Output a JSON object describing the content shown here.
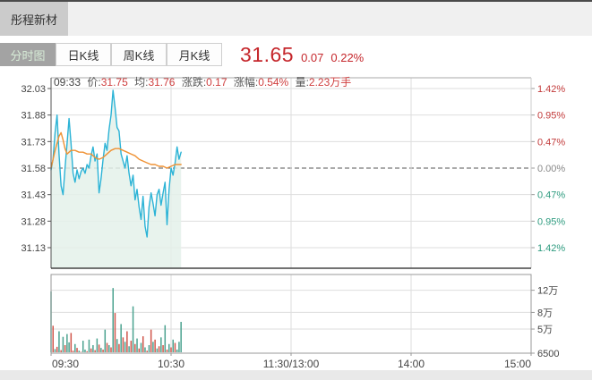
{
  "header": {
    "stock_name": "彤程新材"
  },
  "tabs": [
    {
      "label": "分时图",
      "selected": true
    },
    {
      "label": "日K线",
      "selected": false
    },
    {
      "label": "周K线",
      "selected": false
    },
    {
      "label": "月K线",
      "selected": false
    }
  ],
  "quote": {
    "price": "31.65",
    "change": "0.07",
    "change_pct": "0.22%"
  },
  "info_line": {
    "time": "09:33",
    "price_label": "价:",
    "price": "31.75",
    "avg_label": "均:",
    "avg": "31.76",
    "change_label": "涨跌:",
    "change": "0.17",
    "pct_label": "涨幅:",
    "pct": "0.54%",
    "vol_label": "量:",
    "vol": "2.23万手"
  },
  "colors": {
    "price_line": "#2bb3d6",
    "avg_line": "#ef9234",
    "fill": "#e4f1ea",
    "up": "#d0554a",
    "down": "#4aa28f",
    "axis_red": "#c23b3b",
    "axis_green": "#2e9b7f",
    "axis_gray": "#888888",
    "label_dark": "#444444",
    "grid": "#dedede"
  },
  "chart_data": {
    "type": "line",
    "title": "分时图 (intraday price/volume)",
    "x": {
      "labels": [
        "09:30",
        "10:30",
        "11:30/13:00",
        "14:00",
        "15:00"
      ],
      "minutes_total": 240,
      "gridline_minutes": [
        60,
        120,
        180
      ]
    },
    "price_pane": {
      "base_price": 31.58,
      "left_ticks": [
        32.03,
        31.88,
        31.73,
        31.58,
        31.43,
        31.28,
        31.13
      ],
      "right_ticks": [
        "1.42%",
        "0.95%",
        "0.47%",
        "0.00%",
        "0.47%",
        "0.95%",
        "1.42%"
      ],
      "series": [
        {
          "name": "price",
          "color_key": "price_line",
          "points": [
            [
              0,
              31.57
            ],
            [
              1,
              31.63
            ],
            [
              2,
              31.78
            ],
            [
              3,
              31.88
            ],
            [
              4,
              31.66
            ],
            [
              5,
              31.48
            ],
            [
              6,
              31.43
            ],
            [
              7,
              31.58
            ],
            [
              8,
              31.72
            ],
            [
              9,
              31.86
            ],
            [
              10,
              31.72
            ],
            [
              11,
              31.55
            ],
            [
              12,
              31.5
            ],
            [
              13,
              31.57
            ],
            [
              14,
              31.52
            ],
            [
              15,
              31.56
            ],
            [
              16,
              31.58
            ],
            [
              17,
              31.55
            ],
            [
              18,
              31.6
            ],
            [
              19,
              31.58
            ],
            [
              20,
              31.65
            ],
            [
              21,
              31.7
            ],
            [
              22,
              31.62
            ],
            [
              23,
              31.66
            ],
            [
              24,
              31.44
            ],
            [
              25,
              31.52
            ],
            [
              26,
              31.63
            ],
            [
              27,
              31.72
            ],
            [
              28,
              31.68
            ],
            [
              29,
              31.8
            ],
            [
              30,
              31.88
            ],
            [
              31,
              32.02
            ],
            [
              32,
              31.92
            ],
            [
              33,
              31.81
            ],
            [
              34,
              31.79
            ],
            [
              35,
              31.66
            ],
            [
              36,
              31.62
            ],
            [
              37,
              31.58
            ],
            [
              38,
              31.65
            ],
            [
              39,
              31.55
            ],
            [
              40,
              31.48
            ],
            [
              41,
              31.54
            ],
            [
              42,
              31.4
            ],
            [
              43,
              31.46
            ],
            [
              44,
              31.36
            ],
            [
              45,
              31.29
            ],
            [
              46,
              31.42
            ],
            [
              47,
              31.25
            ],
            [
              48,
              31.19
            ],
            [
              49,
              31.36
            ],
            [
              50,
              31.44
            ],
            [
              51,
              31.38
            ],
            [
              52,
              31.31
            ],
            [
              53,
              31.43
            ],
            [
              54,
              31.46
            ],
            [
              55,
              31.37
            ],
            [
              56,
              31.44
            ],
            [
              57,
              31.5
            ],
            [
              58,
              31.26
            ],
            [
              59,
              31.46
            ],
            [
              60,
              31.58
            ],
            [
              61,
              31.54
            ],
            [
              62,
              31.61
            ],
            [
              63,
              31.7
            ],
            [
              64,
              31.63
            ],
            [
              65,
              31.67
            ]
          ]
        },
        {
          "name": "average",
          "color_key": "avg_line",
          "points": [
            [
              0,
              31.58
            ],
            [
              2,
              31.68
            ],
            [
              4,
              31.76
            ],
            [
              5,
              31.78
            ],
            [
              6,
              31.74
            ],
            [
              7,
              31.69
            ],
            [
              8,
              31.66
            ],
            [
              10,
              31.68
            ],
            [
              12,
              31.68
            ],
            [
              14,
              31.67
            ],
            [
              16,
              31.67
            ],
            [
              18,
              31.66
            ],
            [
              20,
              31.66
            ],
            [
              22,
              31.64
            ],
            [
              24,
              31.63
            ],
            [
              26,
              31.64
            ],
            [
              28,
              31.66
            ],
            [
              30,
              31.68
            ],
            [
              32,
              31.69
            ],
            [
              34,
              31.69
            ],
            [
              36,
              31.68
            ],
            [
              38,
              31.67
            ],
            [
              40,
              31.66
            ],
            [
              42,
              31.65
            ],
            [
              44,
              31.63
            ],
            [
              46,
              31.62
            ],
            [
              48,
              31.61
            ],
            [
              50,
              31.6
            ],
            [
              52,
              31.6
            ],
            [
              54,
              31.59
            ],
            [
              56,
              31.59
            ],
            [
              58,
              31.58
            ],
            [
              60,
              31.59
            ],
            [
              62,
              31.6
            ],
            [
              64,
              31.6
            ],
            [
              65,
              31.6
            ]
          ]
        }
      ]
    },
    "volume_pane": {
      "unit": "万手",
      "ticks": [
        {
          "label": "12万",
          "value": 12
        },
        {
          "label": "8万",
          "value": 8
        },
        {
          "label": "5万",
          "value": 5
        },
        {
          "label": "6500",
          "value": 0.65
        }
      ],
      "bars": [
        [
          11.8,
          "d"
        ],
        [
          5.6,
          "u"
        ],
        [
          1.4,
          "d"
        ],
        [
          1.8,
          "u"
        ],
        [
          4.6,
          "d"
        ],
        [
          1.2,
          "u"
        ],
        [
          3.6,
          "d"
        ],
        [
          2.1,
          "u"
        ],
        [
          4.1,
          "d"
        ],
        [
          2.6,
          "d"
        ],
        [
          4.3,
          "u"
        ],
        [
          1.1,
          "u"
        ],
        [
          2.3,
          "d"
        ],
        [
          1.6,
          "u"
        ],
        [
          1.1,
          "d"
        ],
        [
          0.9,
          "u"
        ],
        [
          2.9,
          "d"
        ],
        [
          1.3,
          "d"
        ],
        [
          1.0,
          "u"
        ],
        [
          3.1,
          "d"
        ],
        [
          1.5,
          "u"
        ],
        [
          2.1,
          "d"
        ],
        [
          1.2,
          "u"
        ],
        [
          3.3,
          "d"
        ],
        [
          2.2,
          "u"
        ],
        [
          1.6,
          "d"
        ],
        [
          1.3,
          "u"
        ],
        [
          4.9,
          "d"
        ],
        [
          2.5,
          "u"
        ],
        [
          2.1,
          "d"
        ],
        [
          1.7,
          "u"
        ],
        [
          12.4,
          "d"
        ],
        [
          7.9,
          "u"
        ],
        [
          3.2,
          "d"
        ],
        [
          2.3,
          "u"
        ],
        [
          5.9,
          "d"
        ],
        [
          3.5,
          "u"
        ],
        [
          2.7,
          "d"
        ],
        [
          4.6,
          "u"
        ],
        [
          1.9,
          "d"
        ],
        [
          2.9,
          "u"
        ],
        [
          9.1,
          "d"
        ],
        [
          2.3,
          "u"
        ],
        [
          3.3,
          "d"
        ],
        [
          1.5,
          "u"
        ],
        [
          2.5,
          "d"
        ],
        [
          3.7,
          "u"
        ],
        [
          1.7,
          "d"
        ],
        [
          1.1,
          "u"
        ],
        [
          2.1,
          "d"
        ],
        [
          4.9,
          "u"
        ],
        [
          2.7,
          "d"
        ],
        [
          3.1,
          "u"
        ],
        [
          1.5,
          "d"
        ],
        [
          1.9,
          "u"
        ],
        [
          3.5,
          "d"
        ],
        [
          2.1,
          "u"
        ],
        [
          5.7,
          "d"
        ],
        [
          1.3,
          "u"
        ],
        [
          2.3,
          "d"
        ],
        [
          1.7,
          "u"
        ],
        [
          3.1,
          "d"
        ],
        [
          2.5,
          "u"
        ],
        [
          1.3,
          "d"
        ],
        [
          2.7,
          "d"
        ],
        [
          6.3,
          "d"
        ]
      ]
    }
  }
}
